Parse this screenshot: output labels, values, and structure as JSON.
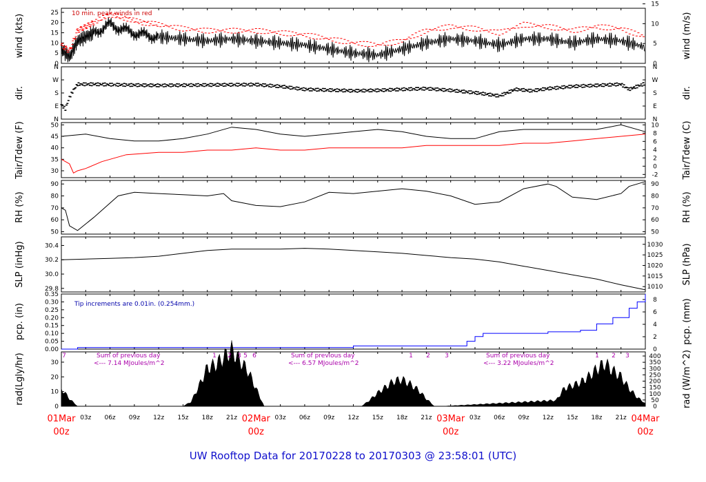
{
  "chart_data": {
    "type": "line",
    "title": "UW Rooftop Data for 20170228  to  20170303 @ 23:58:01  (UTC)",
    "x_axis": {
      "hour_ticks": [
        "03z",
        "06z",
        "09z",
        "12z",
        "15z",
        "18z",
        "21z",
        "03z",
        "06z",
        "09z",
        "12z",
        "15z",
        "18z",
        "21z",
        "03z",
        "06z",
        "09z",
        "12z",
        "15z",
        "18z",
        "21z"
      ],
      "day_labels": [
        {
          "date": "01Mar",
          "hour": "00z"
        },
        {
          "date": "02Mar",
          "hour": "00z"
        },
        {
          "date": "03Mar",
          "hour": "00z"
        },
        {
          "date": "04Mar",
          "hour": "00z"
        }
      ],
      "range_hours": [
        0,
        72
      ]
    },
    "panels": [
      {
        "id": "wind",
        "ylabel_left": "wind (kts)",
        "ylabel_right": "wind (m/s)",
        "left_ticks": [
          "0",
          "5",
          "10",
          "15",
          "20",
          "25"
        ],
        "right_ticks": [
          "0",
          "5",
          "10",
          "15"
        ],
        "ylim": [
          0,
          27
        ],
        "annotation": "10 min. peak winds in red",
        "series": [
          {
            "name": "wind",
            "color": "#000000",
            "x": [
              0,
              1,
              2,
              3,
              4,
              6,
              8,
              10,
              12,
              15,
              18,
              21,
              24,
              27,
              30,
              33,
              36,
              39,
              42,
              45,
              48,
              51,
              54,
              57,
              60,
              63,
              66,
              69,
              72
            ],
            "y": [
              7,
              3,
              11,
              13,
              15,
              19,
              16,
              14,
              13,
              12,
              11,
              12,
              11,
              10,
              9,
              7,
              5,
              4,
              7,
              10,
              12,
              11,
              9,
              12,
              12,
              10,
              12,
              11,
              8
            ]
          },
          {
            "name": "peak",
            "color": "#ff0000",
            "x": [
              0,
              1,
              2,
              3,
              4,
              6,
              8,
              10,
              12,
              15,
              18,
              21,
              24,
              27,
              30,
              33,
              36,
              39,
              42,
              45,
              48,
              51,
              54,
              57,
              60,
              63,
              66,
              69,
              72
            ],
            "y": [
              9,
              6,
              16,
              18,
              20,
              24,
              22,
              20,
              19,
              17,
              16,
              16,
              16,
              15,
              14,
              12,
              10,
              9,
              11,
              16,
              18,
              17,
              15,
              19,
              18,
              16,
              18,
              17,
              13
            ]
          }
        ]
      },
      {
        "id": "dir",
        "ylabel_left": "dir.",
        "ylabel_right": "dir.",
        "left_ticks": [
          "N",
          "E",
          "S",
          "W",
          "N"
        ],
        "right_ticks": [
          "N",
          "E",
          "S",
          "W",
          "N"
        ],
        "ylim": [
          0,
          360
        ],
        "series": [
          {
            "name": "dir",
            "color": "#000000",
            "x": [
              0,
              0.5,
              1,
              1.5,
              2,
              4,
              8,
              12,
              18,
              24,
              27,
              30,
              33,
              36,
              39,
              42,
              45,
              48,
              51,
              54,
              56,
              58,
              60,
              63,
              66,
              69,
              70,
              72
            ],
            "y": [
              100,
              70,
              150,
              200,
              240,
              240,
              235,
              232,
              235,
              238,
              225,
              205,
              200,
              195,
              198,
              205,
              210,
              198,
              182,
              160,
              205,
              195,
              210,
              225,
              232,
              240,
              205,
              245
            ]
          }
        ]
      },
      {
        "id": "temp",
        "ylabel_left": "Tair/Tdew (F)",
        "ylabel_right": "Tair/Tdew (C)",
        "left_ticks": [
          "30",
          "35",
          "40",
          "45",
          "50"
        ],
        "right_ticks": [
          "-2",
          "0",
          "2",
          "4",
          "6",
          "8",
          "10"
        ],
        "ylim": [
          27,
          51
        ],
        "series": [
          {
            "name": "Tair",
            "color": "#000000",
            "x": [
              0,
              3,
              6,
              9,
              12,
              15,
              18,
              21,
              24,
              27,
              30,
              33,
              36,
              39,
              42,
              45,
              48,
              51,
              54,
              57,
              60,
              63,
              66,
              69,
              72
            ],
            "y": [
              45,
              46,
              44,
              43,
              43,
              44,
              46,
              49,
              48,
              46,
              45,
              46,
              47,
              48,
              47,
              45,
              44,
              44,
              47,
              48,
              48,
              48,
              48,
              50,
              47
            ]
          },
          {
            "name": "Tdew",
            "color": "#ff0000",
            "x": [
              0,
              1,
              1.5,
              2,
              3,
              5,
              8,
              12,
              15,
              18,
              21,
              24,
              27,
              30,
              33,
              36,
              39,
              42,
              45,
              48,
              51,
              54,
              57,
              60,
              63,
              66,
              69,
              72
            ],
            "y": [
              35,
              33,
              29,
              30,
              31,
              34,
              37,
              38,
              38,
              39,
              39,
              40,
              39,
              39,
              40,
              40,
              40,
              40,
              41,
              41,
              41,
              41,
              42,
              42,
              43,
              44,
              45,
              46
            ]
          }
        ]
      },
      {
        "id": "rh",
        "ylabel_left": "RH (%)",
        "ylabel_right": "RH (%)",
        "left_ticks": [
          "50",
          "60",
          "70",
          "80",
          "90"
        ],
        "right_ticks": [
          "50",
          "60",
          "70",
          "80",
          "90"
        ],
        "ylim": [
          48,
          93
        ],
        "series": [
          {
            "name": "RH",
            "color": "#000000",
            "x": [
              0,
              0.5,
              1,
              2,
              4,
              7,
              9,
              12,
              15,
              18,
              20,
              21,
              24,
              27,
              30,
              33,
              36,
              39,
              42,
              45,
              48,
              51,
              54,
              57,
              60,
              61,
              63,
              66,
              69,
              70,
              72
            ],
            "y": [
              70,
              68,
              55,
              51,
              62,
              80,
              83,
              82,
              81,
              80,
              82,
              76,
              72,
              71,
              75,
              83,
              82,
              84,
              86,
              84,
              80,
              73,
              75,
              86,
              90,
              88,
              79,
              77,
              82,
              88,
              92
            ]
          }
        ]
      },
      {
        "id": "slp",
        "ylabel_left": "SLP (inHg)",
        "ylabel_right": "SLP (hPa)",
        "left_ticks": [
          "29.8",
          "30.0",
          "30.2",
          "30.4"
        ],
        "right_ticks": [
          "1010",
          "1015",
          "1020",
          "1025",
          "1030"
        ],
        "ylim": [
          29.75,
          30.52
        ],
        "series": [
          {
            "name": "SLP",
            "color": "#000000",
            "x": [
              0,
              3,
              6,
              9,
              12,
              15,
              18,
              21,
              24,
              27,
              30,
              33,
              36,
              39,
              42,
              45,
              48,
              51,
              54,
              57,
              60,
              63,
              66,
              69,
              72
            ],
            "y": [
              30.2,
              30.21,
              30.22,
              30.23,
              30.25,
              30.29,
              30.33,
              30.35,
              30.35,
              30.35,
              30.36,
              30.35,
              30.33,
              30.31,
              30.29,
              30.26,
              30.23,
              30.21,
              30.17,
              30.11,
              30.05,
              29.99,
              29.93,
              29.85,
              29.78
            ]
          }
        ]
      },
      {
        "id": "pcp",
        "ylabel_left": "pcp. (in)",
        "ylabel_right": "pcp. (mm)",
        "left_ticks": [
          "0.00",
          "0.05",
          "0.10",
          "0.15",
          "0.20",
          "0.25",
          "0.30",
          "0.35"
        ],
        "right_ticks": [
          "0",
          "2",
          "4",
          "6",
          "8"
        ],
        "ylim": [
          0,
          0.35
        ],
        "annotation": "Tip increments are 0.01in. (0.254mm.)",
        "series": [
          {
            "name": "pcp",
            "color": "#0000ff",
            "step": true,
            "x": [
              0,
              2,
              36,
              50,
              51,
              52,
              60,
              64,
              66,
              68,
              70,
              71,
              72
            ],
            "y": [
              0,
              0.01,
              0.02,
              0.05,
              0.08,
              0.1,
              0.11,
              0.12,
              0.16,
              0.2,
              0.26,
              0.3,
              0.35
            ]
          }
        ]
      },
      {
        "id": "rad",
        "ylabel_left": "rad(Lgly/hr)",
        "ylabel_right": "rad (W/m^2)",
        "left_ticks": [
          "0",
          "10",
          "20",
          "30"
        ],
        "right_ticks": [
          "0",
          "50",
          "100",
          "150",
          "200",
          "250",
          "300",
          "350",
          "400"
        ],
        "ylim": [
          0,
          37
        ],
        "filled": true,
        "series": [
          {
            "name": "rad",
            "color": "#000000",
            "x": [
              0,
              1,
              2,
              15,
              16,
              17,
              18,
              19,
              20,
              21,
              22,
              23,
              24,
              25,
              37,
              38,
              39,
              40,
              41,
              42,
              43,
              44,
              45,
              46,
              47,
              61,
              62,
              63,
              64,
              65,
              66,
              67,
              68,
              69,
              70,
              71,
              72
            ],
            "y": [
              12,
              5,
              0,
              0,
              3,
              14,
              26,
              28,
              33,
              38,
              31,
              24,
              12,
              0,
              0,
              4,
              9,
              13,
              17,
              18,
              15,
              11,
              5,
              0,
              0,
              4,
              12,
              14,
              16,
              20,
              25,
              29,
              24,
              20,
              12,
              6,
              2
            ]
          }
        ],
        "note_numbers": [
          "7",
          "1",
          "2",
          "3",
          "5",
          "6",
          "1",
          "2",
          "3",
          "1",
          "2",
          "3"
        ],
        "day_sums": [
          {
            "label": "Sum of previous day",
            "value": "<--- 7.14 MJoules/m^2"
          },
          {
            "label": "Sum of previous day",
            "value": "<--- 6.57 MJoules/m^2"
          },
          {
            "label": "Sum of previous day",
            "value": "<--- 3.22 MJoules/m^2"
          }
        ]
      }
    ]
  }
}
